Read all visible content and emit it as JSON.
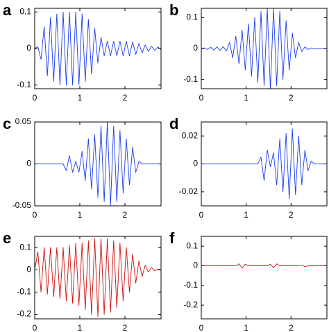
{
  "chart_data": [
    {
      "type": "line",
      "label": "a",
      "xlim": [
        0,
        2.8
      ],
      "xticks": [
        0,
        1,
        2
      ],
      "ylim": [
        -0.11,
        0.11
      ],
      "yticks": [
        -0.1,
        0,
        0.1
      ],
      "series": [
        {
          "color": "#1a3cf0",
          "x": [
            0,
            0.07,
            0.14,
            0.21,
            0.28,
            0.35,
            0.42,
            0.49,
            0.56,
            0.63,
            0.7,
            0.77,
            0.84,
            0.91,
            0.98,
            1.05,
            1.12,
            1.19,
            1.26,
            1.33,
            1.4,
            1.47,
            1.54,
            1.61,
            1.68,
            1.75,
            1.82,
            1.89,
            1.96,
            2.03,
            2.1,
            2.17,
            2.24,
            2.31,
            2.38,
            2.45,
            2.52,
            2.59,
            2.66,
            2.73,
            2.8
          ],
          "values": [
            0,
            0.005,
            -0.03,
            0.06,
            -0.075,
            0.085,
            -0.09,
            0.095,
            -0.1,
            0.1,
            -0.1,
            0.1,
            -0.1,
            0.1,
            -0.1,
            0.095,
            -0.09,
            0.08,
            -0.07,
            0.055,
            -0.04,
            0.03,
            -0.02,
            0.02,
            -0.02,
            0.02,
            -0.02,
            0.02,
            -0.02,
            0.02,
            -0.02,
            0.018,
            -0.016,
            0.014,
            -0.012,
            0.01,
            -0.008,
            0.006,
            -0.005,
            0.004,
            -0.003
          ]
        }
      ]
    },
    {
      "type": "line",
      "label": "b",
      "xlim": [
        0,
        2.8
      ],
      "xticks": [
        0,
        1,
        2
      ],
      "ylim": [
        -0.13,
        0.13
      ],
      "yticks": [
        -0.1,
        0,
        0.1
      ],
      "series": [
        {
          "color": "#1a3cf0",
          "x": [
            0,
            0.07,
            0.14,
            0.21,
            0.28,
            0.35,
            0.42,
            0.49,
            0.56,
            0.63,
            0.7,
            0.77,
            0.84,
            0.91,
            0.98,
            1.05,
            1.12,
            1.19,
            1.26,
            1.33,
            1.4,
            1.47,
            1.54,
            1.61,
            1.68,
            1.75,
            1.82,
            1.89,
            1.96,
            2.03,
            2.1,
            2.17,
            2.24,
            2.31,
            2.38,
            2.45,
            2.52,
            2.59,
            2.66,
            2.73,
            2.8
          ],
          "values": [
            0,
            0.002,
            -0.003,
            0.004,
            -0.005,
            0.005,
            -0.006,
            0.006,
            -0.008,
            0.02,
            -0.03,
            0.04,
            -0.05,
            0.06,
            -0.07,
            0.08,
            -0.09,
            0.1,
            -0.11,
            0.12,
            -0.12,
            0.13,
            -0.13,
            0.13,
            -0.12,
            0.12,
            -0.1,
            0.09,
            -0.07,
            0.05,
            -0.03,
            0.02,
            -0.01,
            0.005,
            -0.003,
            0.002,
            -0.002,
            0.001,
            -0.001,
            0.001,
            0
          ]
        }
      ]
    },
    {
      "type": "line",
      "label": "c",
      "xlim": [
        0,
        2.8
      ],
      "xticks": [
        0,
        1,
        2
      ],
      "ylim": [
        -0.05,
        0.05
      ],
      "yticks": [
        -0.05,
        0,
        0.05
      ],
      "series": [
        {
          "color": "#1a3cf0",
          "x": [
            0,
            0.07,
            0.14,
            0.21,
            0.28,
            0.35,
            0.42,
            0.49,
            0.56,
            0.63,
            0.7,
            0.77,
            0.84,
            0.91,
            0.98,
            1.05,
            1.12,
            1.19,
            1.26,
            1.33,
            1.4,
            1.47,
            1.54,
            1.61,
            1.68,
            1.75,
            1.82,
            1.89,
            1.96,
            2.03,
            2.1,
            2.17,
            2.24,
            2.31,
            2.38,
            2.45,
            2.52,
            2.59,
            2.66,
            2.73,
            2.8
          ],
          "values": [
            0,
            0,
            0,
            0,
            0,
            0,
            0,
            0,
            0,
            0,
            -0.008,
            0.01,
            -0.01,
            0.003,
            -0.01,
            0.015,
            -0.02,
            0.03,
            -0.03,
            0.035,
            -0.04,
            0.045,
            -0.045,
            0.05,
            -0.05,
            0.045,
            -0.045,
            0.04,
            -0.035,
            0.03,
            -0.025,
            0.02,
            -0.01,
            0.003,
            0,
            0,
            0,
            0,
            0,
            0,
            0
          ]
        }
      ]
    },
    {
      "type": "line",
      "label": "d",
      "xlim": [
        0,
        2.8
      ],
      "xticks": [
        0,
        1,
        2
      ],
      "ylim": [
        -0.03,
        0.03
      ],
      "yticks": [
        -0.02,
        0,
        0.02
      ],
      "series": [
        {
          "color": "#1a3cf0",
          "x": [
            0,
            0.07,
            0.14,
            0.21,
            0.28,
            0.35,
            0.42,
            0.49,
            0.56,
            0.63,
            0.7,
            0.77,
            0.84,
            0.91,
            0.98,
            1.05,
            1.12,
            1.19,
            1.26,
            1.33,
            1.4,
            1.47,
            1.54,
            1.61,
            1.68,
            1.75,
            1.82,
            1.89,
            1.96,
            2.03,
            2.1,
            2.17,
            2.24,
            2.31,
            2.38,
            2.45,
            2.52,
            2.59,
            2.66,
            2.73,
            2.8
          ],
          "values": [
            0,
            0,
            0,
            0,
            0,
            0,
            0,
            0,
            0,
            0,
            0,
            0,
            0,
            0,
            0,
            0,
            0,
            0,
            0,
            0.005,
            -0.012,
            0.01,
            -0.002,
            0.008,
            -0.015,
            0.018,
            -0.02,
            0.022,
            -0.025,
            0.025,
            -0.022,
            0.02,
            -0.015,
            0.01,
            -0.005,
            0.002,
            0,
            0,
            0,
            0,
            0
          ]
        }
      ]
    },
    {
      "type": "line",
      "label": "e",
      "xlim": [
        0,
        2.8
      ],
      "xticks": [
        0,
        1,
        2
      ],
      "ylim": [
        -0.22,
        0.15
      ],
      "yticks": [
        -0.2,
        -0.1,
        0,
        0.1
      ],
      "series": [
        {
          "color": "#d01010",
          "x": [
            0,
            0.07,
            0.14,
            0.21,
            0.28,
            0.35,
            0.42,
            0.49,
            0.56,
            0.63,
            0.7,
            0.77,
            0.84,
            0.91,
            0.98,
            1.05,
            1.12,
            1.19,
            1.26,
            1.33,
            1.4,
            1.47,
            1.54,
            1.61,
            1.68,
            1.75,
            1.82,
            1.89,
            1.96,
            2.03,
            2.1,
            2.17,
            2.24,
            2.31,
            2.38,
            2.45,
            2.52,
            2.59,
            2.66,
            2.73,
            2.8
          ],
          "values": [
            0,
            0.08,
            -0.1,
            0.1,
            -0.11,
            0.1,
            -0.12,
            0.1,
            -0.13,
            0.1,
            -0.14,
            0.11,
            -0.15,
            0.12,
            -0.16,
            0.12,
            -0.18,
            0.13,
            -0.2,
            0.14,
            -0.21,
            0.14,
            -0.2,
            0.14,
            -0.19,
            0.13,
            -0.17,
            0.12,
            -0.14,
            0.1,
            -0.1,
            0.07,
            -0.06,
            0.04,
            -0.03,
            0.02,
            -0.01,
            0.01,
            -0.005,
            0.003,
            0
          ]
        }
      ]
    },
    {
      "type": "line",
      "label": "f",
      "xlim": [
        0,
        2.8
      ],
      "xticks": [
        0,
        1,
        2
      ],
      "ylim": [
        -0.27,
        0.15
      ],
      "yticks": [
        -0.2,
        -0.1,
        0,
        0.1
      ],
      "series": [
        {
          "color": "#d01010",
          "x": [
            0,
            0.07,
            0.14,
            0.21,
            0.28,
            0.35,
            0.42,
            0.49,
            0.56,
            0.63,
            0.7,
            0.77,
            0.84,
            0.91,
            0.98,
            1.05,
            1.12,
            1.19,
            1.26,
            1.33,
            1.4,
            1.47,
            1.54,
            1.61,
            1.68,
            1.75,
            1.82,
            1.89,
            1.96,
            2.03,
            2.1,
            2.17,
            2.24,
            2.31,
            2.38,
            2.45,
            2.52,
            2.59,
            2.66,
            2.73,
            2.8
          ],
          "values": [
            0,
            0,
            0,
            0,
            0,
            0,
            0,
            0,
            0,
            0,
            0,
            0,
            0.01,
            -0.012,
            0.008,
            0,
            0,
            0,
            0,
            0,
            0,
            0,
            0.008,
            -0.01,
            0.01,
            0,
            0,
            0,
            0,
            0,
            0,
            0,
            0.004,
            -0.005,
            0,
            0,
            0,
            0,
            0,
            0,
            0
          ]
        }
      ]
    }
  ]
}
